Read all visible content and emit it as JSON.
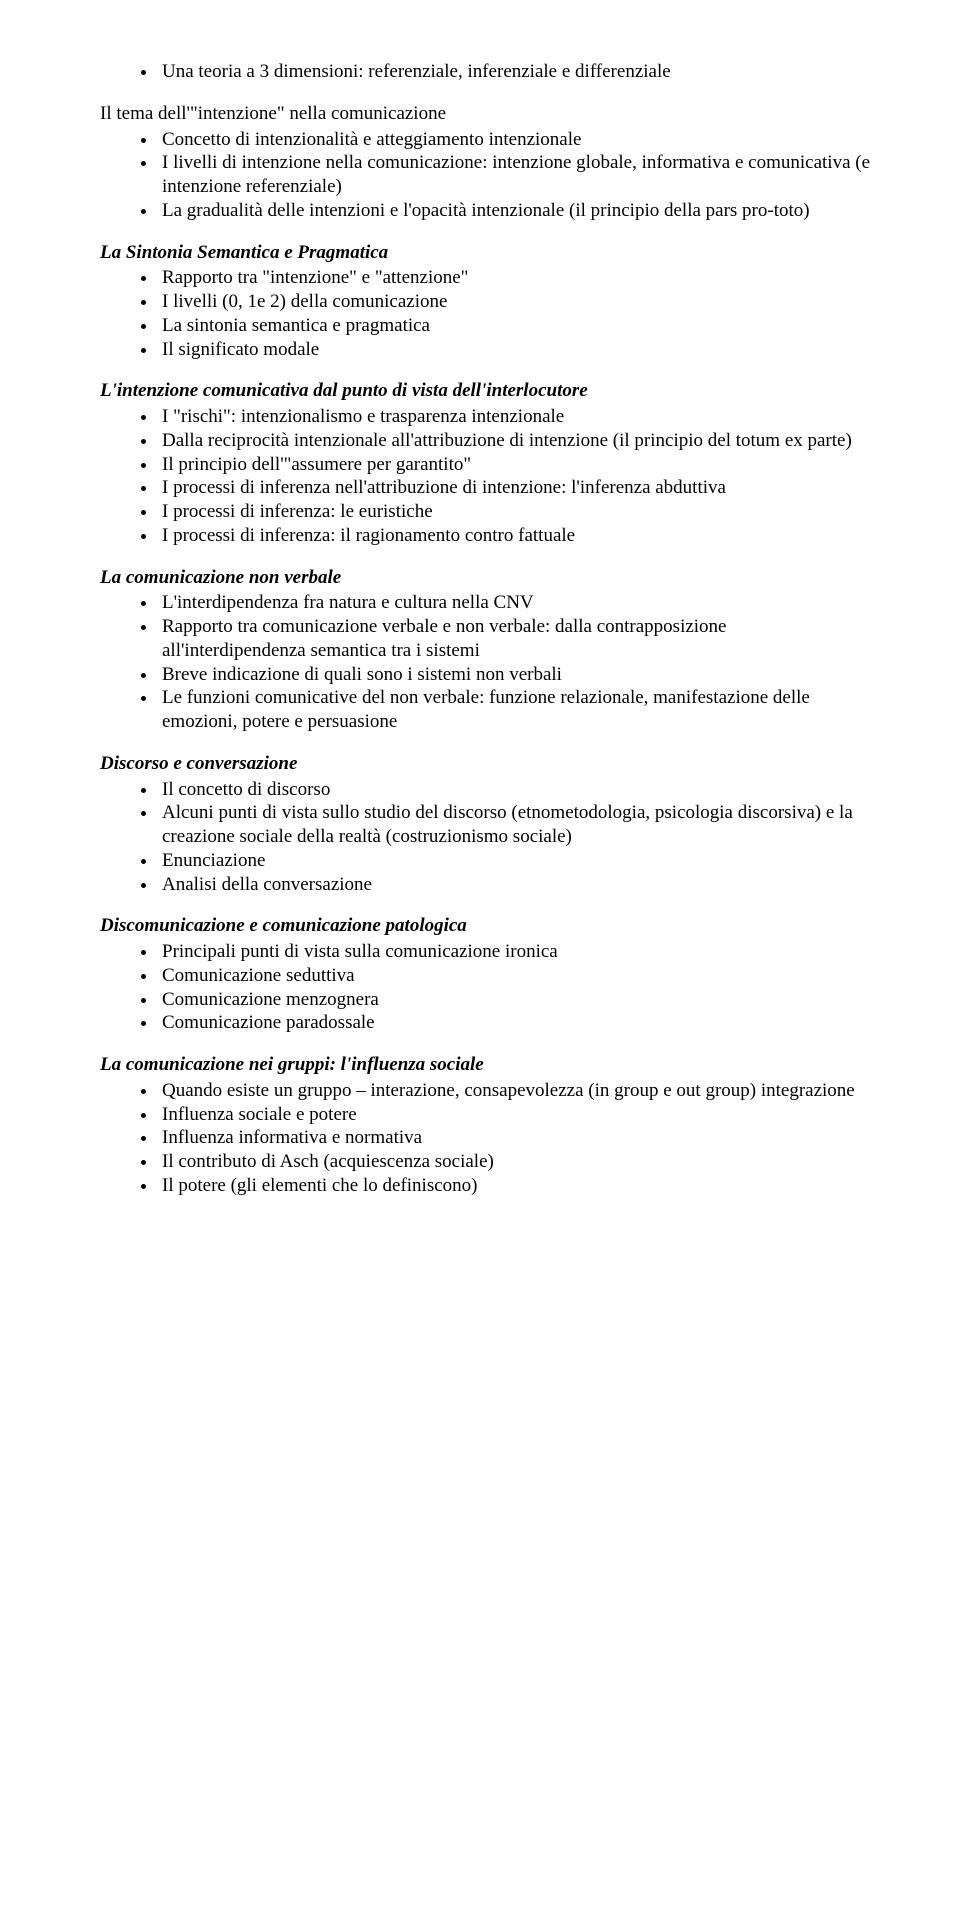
{
  "top_items": [
    "Una teoria a 3 dimensioni: referenziale, inferenziale e differenziale"
  ],
  "title1": "Il tema dell'\"intenzione\" nella comunicazione",
  "list1": [
    "Concetto di intenzionalità e atteggiamento intenzionale",
    "I livelli di intenzione nella comunicazione: intenzione globale, informativa e comunicativa (e intenzione referenziale)",
    "La gradualità delle intenzioni e l'opacità intenzionale (il principio della pars pro-toto)"
  ],
  "heading2": "La Sintonia Semantica e Pragmatica",
  "list2": [
    "Rapporto tra \"intenzione\"  e \"attenzione\"",
    "I livelli (0, 1e 2) della comunicazione",
    "La sintonia semantica e pragmatica",
    "Il significato modale"
  ],
  "heading3": "L'intenzione comunicativa dal punto di vista dell'interlocutore",
  "list3": [
    "I \"rischi\": intenzionalismo e trasparenza intenzionale",
    "Dalla reciprocità intenzionale all'attribuzione di intenzione (il principio del totum ex parte)",
    "Il principio dell'\"assumere per garantito\"",
    "I processi di inferenza nell'attribuzione di intenzione: l'inferenza abduttiva",
    "I processi di inferenza: le euristiche",
    "I processi di inferenza: il ragionamento contro fattuale"
  ],
  "heading4": "La comunicazione non verbale",
  "list4": [
    "L'interdipendenza fra natura e cultura nella CNV",
    " Rapporto tra comunicazione verbale e non verbale: dalla contrapposizione all'interdipendenza semantica tra i sistemi",
    "Breve indicazione di quali sono i sistemi non verbali",
    "Le funzioni comunicative del non verbale: funzione relazionale, manifestazione delle emozioni, potere e persuasione"
  ],
  "heading5": "Discorso e conversazione",
  "list5": [
    "Il concetto di discorso",
    "Alcuni punti di vista sullo studio del discorso (etnometodologia, psicologia discorsiva) e la creazione sociale della realtà (costruzionismo sociale)",
    "Enunciazione",
    "Analisi della conversazione"
  ],
  "heading6": "Discomunicazione e comunicazione patologica",
  "list6": [
    "Principali punti di vista sulla comunicazione ironica",
    "Comunicazione seduttiva",
    "Comunicazione menzognera",
    "Comunicazione paradossale"
  ],
  "heading7": "La comunicazione nei gruppi: l'influenza sociale",
  "list7": [
    "Quando esiste un gruppo – interazione, consapevolezza (in group e out group) integrazione",
    "Influenza sociale e potere",
    "Influenza informativa e normativa",
    "Il contributo di Asch (acquiescenza sociale)",
    "Il potere (gli elementi che lo definiscono)"
  ]
}
